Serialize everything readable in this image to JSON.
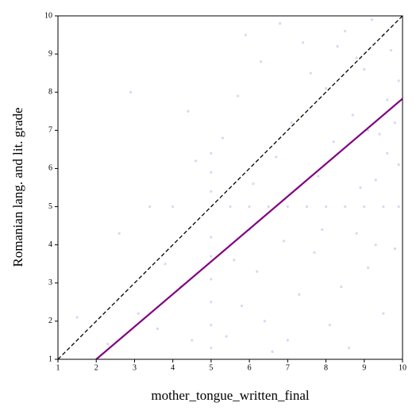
{
  "chart_data": {
    "type": "scatter",
    "xlabel": "mother_tongue_written_final",
    "ylabel": "Romanian lang. and lit. grade",
    "xlim": [
      1,
      10
    ],
    "ylim": [
      1,
      10
    ],
    "xticks": [
      1,
      2,
      3,
      4,
      5,
      6,
      7,
      8,
      9,
      10
    ],
    "yticks": [
      1,
      2,
      3,
      4,
      5,
      6,
      7,
      8,
      9,
      10
    ],
    "series": [
      {
        "color": "#9370db",
        "x": [
          2.3,
          3.1,
          3.6,
          4.2,
          4.5,
          2.6,
          3.4,
          4.0,
          4.6,
          3.8,
          1.5,
          2.9,
          4.4,
          5,
          5,
          5,
          5,
          5,
          5,
          5,
          5,
          5,
          5.5,
          6,
          6.5,
          7,
          7.5,
          8,
          8.5,
          9,
          9.5,
          9.9,
          5.4,
          5.8,
          6.2,
          6.6,
          6.9,
          7.3,
          7.7,
          8.1,
          8.4,
          8.8,
          9.1,
          9.5,
          9.8,
          6.0,
          7.0,
          8.6,
          9.3,
          5.6,
          6.4,
          7.9,
          5.3,
          5.7,
          6.1,
          6.3,
          6.7,
          7.1,
          7.4,
          7.8,
          8.0,
          8.2,
          8.5,
          8.7,
          8.9,
          9.0,
          9.2,
          9.4,
          9.6,
          9.7,
          9.9,
          9.9,
          9.3,
          8.3,
          7.6,
          6.8,
          5.9,
          9.5,
          9.8,
          9.1,
          8.8,
          9.6
        ],
        "y": [
          1.4,
          2.2,
          1.8,
          2.9,
          1.5,
          4.3,
          5.0,
          5.0,
          6.2,
          3.5,
          2.1,
          8.0,
          7.5,
          1.3,
          1.9,
          2.5,
          3.1,
          3.7,
          4.2,
          5.4,
          5.9,
          6.4,
          5,
          5,
          5,
          5,
          5,
          5,
          5,
          5,
          5,
          5,
          1.6,
          2.4,
          3.3,
          1.2,
          4.1,
          2.7,
          3.8,
          1.9,
          2.9,
          4.3,
          3.4,
          2.2,
          3.9,
          4.4,
          1.5,
          1.3,
          4.0,
          3.6,
          2.0,
          4.4,
          6.8,
          7.9,
          5.6,
          8.8,
          6.3,
          7.2,
          9.3,
          5.8,
          8.1,
          6.7,
          9.6,
          7.4,
          5.5,
          8.6,
          9.9,
          6.9,
          7.8,
          9.1,
          8.3,
          6.1,
          5.7,
          9.2,
          8.5,
          9.8,
          9.5,
          9.5,
          7.2,
          7.0,
          8.9,
          6.4
        ]
      }
    ],
    "lines": [
      {
        "color": "#000000",
        "dash": true,
        "x": [
          1,
          10
        ],
        "y": [
          1,
          10
        ]
      },
      {
        "color": "#800080",
        "dash": false,
        "x": [
          2,
          10
        ],
        "y": [
          1,
          7.83
        ]
      }
    ]
  }
}
